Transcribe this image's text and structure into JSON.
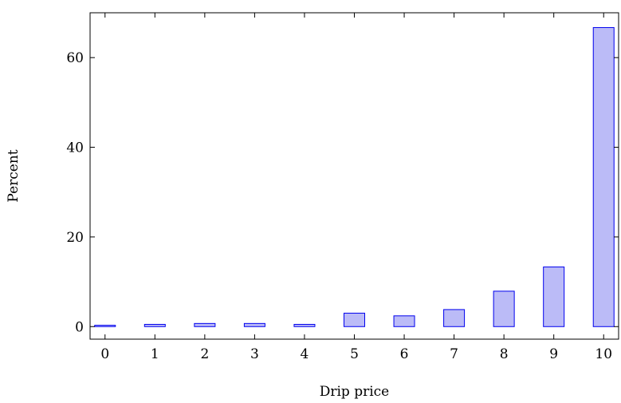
{
  "chart_data": {
    "type": "bar",
    "xlabel": "Drip price",
    "ylabel": "Percent",
    "categories": [
      "0",
      "1",
      "2",
      "3",
      "4",
      "5",
      "6",
      "7",
      "8",
      "9",
      "10"
    ],
    "values": [
      0.3,
      0.5,
      0.7,
      0.7,
      0.5,
      3.0,
      2.4,
      3.8,
      7.9,
      13.3,
      66.7
    ],
    "y_ticks": [
      0,
      20,
      40,
      60
    ],
    "y_tick_labels": [
      "0",
      "20",
      "40",
      "60"
    ],
    "ylim": [
      -2.8,
      70
    ],
    "xlim": [
      -0.3,
      10.3
    ],
    "grid": false,
    "colors": {
      "bar_fill": "#bbbbf7",
      "bar_stroke": "#0000ee",
      "axis": "#000000"
    }
  }
}
